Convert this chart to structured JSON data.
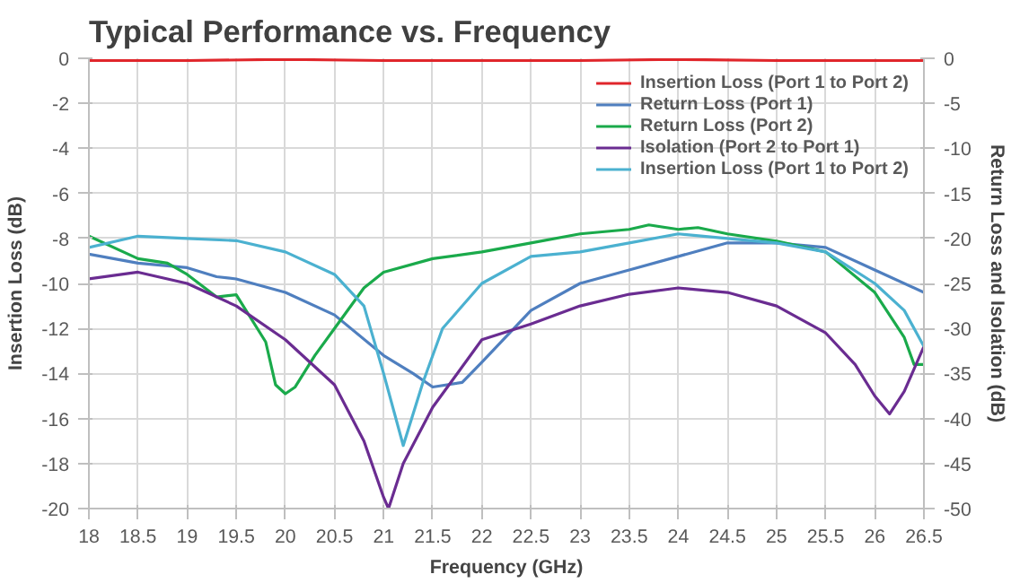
{
  "chart_data": {
    "type": "line",
    "title": "Typical Performance vs. Frequency",
    "xlabel": "Frequency (GHz)",
    "ylabel": "Insertion Loss (dB)",
    "y2label": "Return Loss and Isolation (dB)",
    "xlim": [
      18,
      26.5
    ],
    "xticks": [
      18,
      18.5,
      19,
      19.5,
      20,
      20.5,
      21,
      21.5,
      22,
      22.5,
      23,
      23.5,
      24,
      24.5,
      25,
      25.5,
      26,
      26.5
    ],
    "ylim": [
      -20,
      0
    ],
    "yticks": [
      -20,
      -18,
      -16,
      -14,
      -12,
      -10,
      -8,
      -6,
      -4,
      -2,
      0
    ],
    "y2lim": [
      -50,
      0
    ],
    "y2ticks": [
      -50,
      -45,
      -40,
      -35,
      -30,
      -25,
      -20,
      -15,
      -10,
      -5,
      0
    ],
    "grid": true,
    "legend": "top right",
    "line_style": "solid",
    "marker": "none",
    "series": [
      {
        "name": "Insertion Loss (Port 1 to Port 2)",
        "color": "#e0262b",
        "x": [
          18,
          19,
          20,
          21,
          22,
          23,
          24,
          25,
          26,
          26.5
        ],
        "values": [
          -0.1,
          -0.1,
          -0.05,
          -0.1,
          -0.1,
          -0.1,
          -0.05,
          -0.1,
          -0.1,
          -0.1
        ]
      },
      {
        "name": "Return Loss (Port 1)",
        "color": "#4f7fbf",
        "axis": "y2",
        "x": [
          18,
          18.5,
          19,
          19.3,
          19.5,
          20,
          20.5,
          21,
          21.3,
          21.5,
          21.8,
          22,
          22.5,
          23,
          23.5,
          24,
          24.5,
          25,
          25.5,
          26,
          26.5
        ],
        "values": [
          -21.75,
          -22.75,
          -23.25,
          -24.25,
          -24.5,
          -26,
          -28.5,
          -33,
          -35,
          -36.5,
          -36,
          -33.75,
          -28,
          -25,
          -23.5,
          -22,
          -20.5,
          -20.5,
          -21,
          -23.5,
          -26
        ]
      },
      {
        "name": "Return Loss (Port 2)",
        "color": "#1aaa4b",
        "axis": "y2",
        "x": [
          18,
          18.5,
          18.8,
          19,
          19.3,
          19.5,
          19.8,
          19.9,
          20,
          20.1,
          20.3,
          20.5,
          20.8,
          21,
          21.5,
          22,
          22.5,
          23,
          23.5,
          23.7,
          24,
          24.2,
          24.5,
          25,
          25.5,
          26,
          26.3,
          26.4,
          26.5
        ],
        "values": [
          -19.75,
          -22.25,
          -22.75,
          -24,
          -26.5,
          -26.25,
          -31.5,
          -36.25,
          -37.25,
          -36.5,
          -33,
          -30,
          -25.5,
          -23.75,
          -22.25,
          -21.5,
          -20.5,
          -19.5,
          -19,
          -18.5,
          -19,
          -18.8,
          -19.5,
          -20.3,
          -21.5,
          -26,
          -31,
          -34,
          -34
        ]
      },
      {
        "name": "Isolation (Port 2 to Port 1)",
        "color": "#6a2c91",
        "axis": "y2",
        "x": [
          18,
          18.5,
          19,
          19.5,
          20,
          20.5,
          20.8,
          21,
          21.05,
          21.2,
          21.5,
          22,
          22.5,
          23,
          23.5,
          24,
          24.5,
          25,
          25.5,
          25.8,
          26,
          26.15,
          26.3,
          26.5
        ],
        "values": [
          -24.5,
          -23.75,
          -25,
          -27.5,
          -31.25,
          -36.25,
          -42.5,
          -48.75,
          -50,
          -45,
          -38.75,
          -31.25,
          -29.5,
          -27.5,
          -26.2,
          -25.5,
          -26,
          -27.5,
          -30.5,
          -34,
          -37.5,
          -39.5,
          -37,
          -32
        ]
      },
      {
        "name": "Insertion Loss (Port 1 to Port 2)",
        "color": "#4bb1d0",
        "axis": "y2",
        "x": [
          18,
          18.5,
          19,
          19.5,
          20,
          20.5,
          20.8,
          21,
          21.2,
          21.4,
          21.6,
          22,
          22.5,
          23,
          23.5,
          24,
          24.5,
          25,
          25.5,
          26,
          26.3,
          26.5
        ],
        "values": [
          -21,
          -19.75,
          -20,
          -20.25,
          -21.5,
          -24,
          -27.5,
          -35,
          -43,
          -36,
          -30,
          -25,
          -22,
          -21.5,
          -20.5,
          -19.5,
          -20,
          -20.5,
          -21.5,
          -25,
          -28,
          -32
        ]
      }
    ]
  }
}
